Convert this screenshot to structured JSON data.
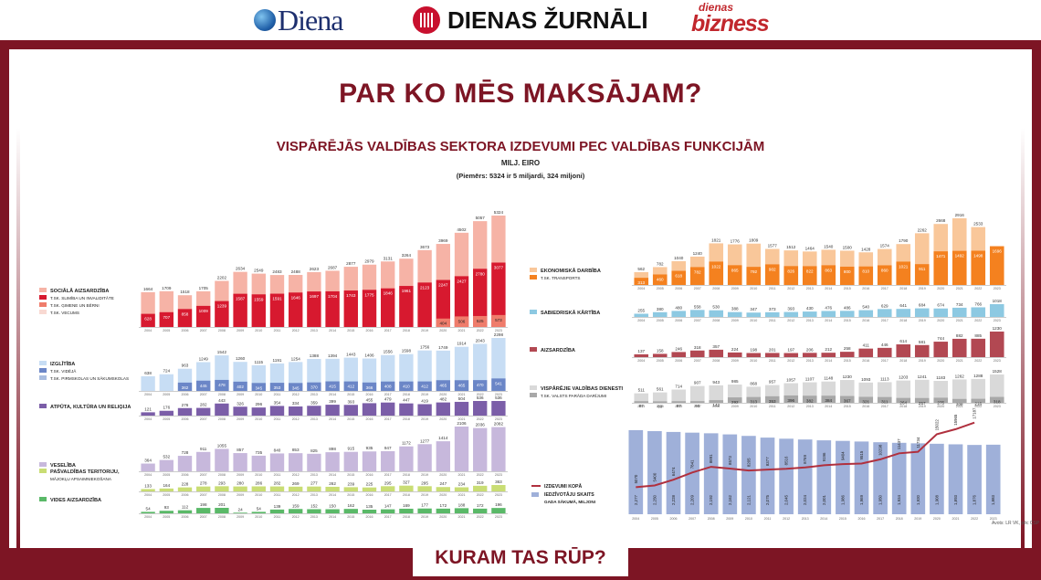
{
  "logos": {
    "diena": "Diena",
    "dienas_zurnali": "DIENAS ŽURNĀLI",
    "db_top": "dienas",
    "db_bottom": "bizness"
  },
  "heading": "PAR KO MĒS MAKSĀJAM?",
  "subtitle": "VISPĀRĒJĀS VALDĪBAS SEKTORA IZDEVUMI PEC VALDĪBAS FUNKCIJĀM",
  "unit": "MILJ. EIRO",
  "example": "(Piemērs: 5324 ir 5 miljardi, 324 miljoni)",
  "bottom_title": "KURAM TAS RŪP?",
  "source": "Avots: LR VK, pēc CSP",
  "years_20": [
    "2004",
    "2005",
    "2006",
    "2007",
    "2008",
    "2009",
    "2010",
    "2011",
    "2012",
    "2013",
    "2014",
    "2015",
    "2016",
    "2017",
    "2018",
    "2019",
    "2020",
    "2021",
    "2022",
    "2023"
  ],
  "years_19": [
    "2004",
    "2005",
    "2006",
    "2007",
    "2008",
    "2009",
    "2010",
    "2011",
    "2012",
    "2013",
    "2014",
    "2015",
    "2016",
    "2017",
    "2018",
    "2019",
    "2020",
    "2021",
    "2022"
  ],
  "colors": {
    "social": "#f6b3a6",
    "sick": "#d7192f",
    "family": "#ef7c6b",
    "age": "#f8d9d2",
    "edu_total": "#c7ddf4",
    "edu_secondary": "#6b86c7",
    "edu_preschool": "#a9bde0",
    "culture": "#7b5ea8",
    "health": "#c7b8dc",
    "territory": "#c9dd74",
    "environment": "#5ab968",
    "econ": "#f9c79a",
    "transport": "#f4811f",
    "order": "#8dc9e2",
    "defence": "#b24852",
    "gov_total": "#d9d9d9",
    "gov_debt": "#a8a8a8",
    "pop_bar": "#9fb0d9",
    "spend_line": "#b0303e",
    "maroon": "#7d1524"
  },
  "chart_data": [
    {
      "type": "bar",
      "id": "social",
      "legend": [
        "SOCIĀLĀ AIZSARDZĪBA",
        "T.SK. SLIMĪBA UN INVALIDITĀTE",
        "T.SK. ĢIMENE UN BĒRNI",
        "T.SK. VECUMS"
      ],
      "series": [
        {
          "values": [
            1664,
            1709,
            1518,
            1705,
            2202,
            2634,
            2549,
            2483,
            2488,
            2623,
            2687,
            2877,
            2979,
            3131,
            3264,
            3673,
            3969,
            4502,
            5057,
            5324
          ]
        },
        {
          "values": [
            628,
            707,
            858,
            1009,
            1239,
            1587,
            1559,
            1591,
            1646,
            1697,
            1704,
            1743,
            1775,
            1846,
            1961,
            2123,
            2247,
            2427,
            2780,
            3077
          ]
        },
        {
          "values": [
            null,
            null,
            null,
            null,
            null,
            null,
            null,
            null,
            null,
            null,
            null,
            null,
            null,
            null,
            null,
            null,
            404,
            506,
            525,
            573
          ]
        },
        {
          "values": [
            null,
            null,
            null,
            null,
            null,
            null,
            null,
            null,
            null,
            null,
            null,
            null,
            null,
            null,
            null,
            null,
            null,
            null,
            null,
            null
          ]
        }
      ]
    },
    {
      "type": "bar",
      "id": "education",
      "legend": [
        "IZGLĪTĪBA",
        "T.SK. VIDĒJĀ",
        "T.SK. PIRMSKOLAS UN SĀKUMSKOLAS"
      ],
      "series": [
        {
          "values": [
            638,
            724,
            963,
            1249,
            1542,
            1260,
            1115,
            1191,
            1254,
            1388,
            1394,
            1443,
            1406,
            1556,
            1598,
            1756,
            1749,
            1914,
            2043,
            2298
          ]
        },
        {
          "values": [
            null,
            null,
            362,
            445,
            478,
            402,
            345,
            353,
            345,
            370,
            415,
            412,
            366,
            408,
            410,
            412,
            465,
            465,
            470,
            541
          ]
        },
        {
          "values": [
            null,
            null,
            null,
            null,
            null,
            null,
            null,
            null,
            null,
            null,
            null,
            null,
            null,
            null,
            null,
            null,
            null,
            null,
            null,
            null
          ]
        }
      ]
    },
    {
      "type": "bar",
      "id": "culture",
      "legend": [
        "ATPŪTA, KULTŪRA UN RELIĢIJA"
      ],
      "series": [
        {
          "values": [
            121,
            176,
            276,
            282,
            443,
            326,
            296,
            354,
            334,
            359,
            399,
            393,
            455,
            479,
            447,
            419,
            482,
            504,
            536,
            536
          ]
        }
      ]
    },
    {
      "type": "bar",
      "id": "health",
      "legend": [
        "VESELĪBA"
      ],
      "series": [
        {
          "values": [
            364,
            532,
            728,
            911,
            1055,
            857,
            735,
            840,
            853,
            825,
            898,
            915,
            935,
            947,
            1172,
            1277,
            1414,
            2106,
            2036,
            2082
          ]
        }
      ]
    },
    {
      "type": "bar",
      "id": "territory",
      "legend": [
        "PAŠVALDĪBAS TERITORIJU,",
        "MĀJOKĻU APSAIMNIEKOŠANA"
      ],
      "series": [
        {
          "values": [
            133,
            164,
            228,
            278,
            293,
            280,
            286,
            282,
            269,
            277,
            262,
            239,
            225,
            295,
            327,
            295,
            247,
            234,
            319,
            363
          ]
        }
      ]
    },
    {
      "type": "bar",
      "id": "environment",
      "legend": [
        "VIDES AIZSARDZĪBA"
      ],
      "series": [
        {
          "values": [
            54,
            93,
            112,
            198,
            201,
            24,
            54,
            139,
            159,
            152,
            150,
            162,
            135,
            147,
            169,
            177,
            172,
            188,
            172,
            196
          ]
        }
      ]
    },
    {
      "type": "bar",
      "id": "economy",
      "legend": [
        "EKONOMISKĀ DARBĪBA",
        "T.SK. TRANSPORTS"
      ],
      "series": [
        {
          "values": [
            562,
            782,
            1040,
            1240,
            1821,
            1776,
            1809,
            1577,
            1512,
            1464,
            1540,
            1500,
            1428,
            1574,
            1790,
            2262,
            2668,
            2916,
            2533
          ]
        },
        {
          "values": [
            313,
            460,
            618,
            782,
            1022,
            865,
            792,
            902,
            826,
            822,
            863,
            800,
            810,
            860,
            1021,
            911,
            1471,
            1492,
            1498,
            1696
          ]
        }
      ]
    },
    {
      "type": "bar",
      "id": "order",
      "legend": [
        "SABIEDRISKĀ KĀRTĪBA"
      ],
      "series": [
        {
          "values": [
            255,
            380,
            480,
            558,
            530,
            388,
            347,
            373,
            393,
            430,
            476,
            486,
            540,
            629,
            641,
            684,
            674,
            734,
            766,
            1018
          ]
        }
      ]
    },
    {
      "type": "bar",
      "id": "defence",
      "legend": [
        "AIZSARDZĪBA"
      ],
      "series": [
        {
          "values": [
            137,
            158,
            246,
            318,
            357,
            224,
            198,
            201,
            197,
            206,
            212,
            258,
            411,
            446,
            614,
            581,
            744,
            882,
            885,
            1230
          ]
        }
      ]
    },
    {
      "type": "bar",
      "id": "gov",
      "legend": [
        "VISPĀRĒJIE VALDĪBAS DIENESTI",
        "T.SK. VALSTS PARĀDA DARĪJUMI"
      ],
      "series": [
        {
          "values": [
            511,
            561,
            714,
            907,
            943,
            985,
            868,
            957,
            1057,
            1107,
            1148,
            1230,
            1093,
            1113,
            1203,
            1241,
            1183,
            1262,
            1288,
            1528
          ]
        },
        {
          "values": [
            87,
            80,
            87,
            90,
            142,
            292,
            313,
            353,
            396,
            382,
            384,
            367,
            321,
            311,
            264,
            257,
            275,
            208,
            216,
            318
          ]
        }
      ]
    },
    {
      "type": "line",
      "id": "population",
      "legend": [
        "IZDEVUMI KOPĀ",
        "IEDZĪVOTĀJU SKAITS",
        "GADA SĀKUMĀ, MILJONI"
      ],
      "series": [
        {
          "values": [
            5070,
            5400,
            6474,
            7841,
            8891,
            8573,
            8205,
            8377,
            8516,
            8769,
            9196,
            9404,
            9515,
            10298,
            11437,
            11734,
            15022,
            15965,
            17187,
            null
          ]
        },
        {
          "labels": [
            "2,277",
            "2,250",
            "2,228",
            "2,209",
            "2,192",
            "2,162",
            "2,121",
            "2,075",
            "2,045",
            "2,024",
            "2,001",
            "1,986",
            "1,969",
            "1,950",
            "1,934",
            "1,920",
            "1,908",
            "1,893",
            "1,876",
            "1,883"
          ],
          "values": [
            2.277,
            2.25,
            2.228,
            2.209,
            2.192,
            2.162,
            2.121,
            2.075,
            2.045,
            2.024,
            2.001,
            1.986,
            1.969,
            1.95,
            1.934,
            1.92,
            1.908,
            1.893,
            1.876,
            1.883
          ]
        }
      ]
    }
  ]
}
